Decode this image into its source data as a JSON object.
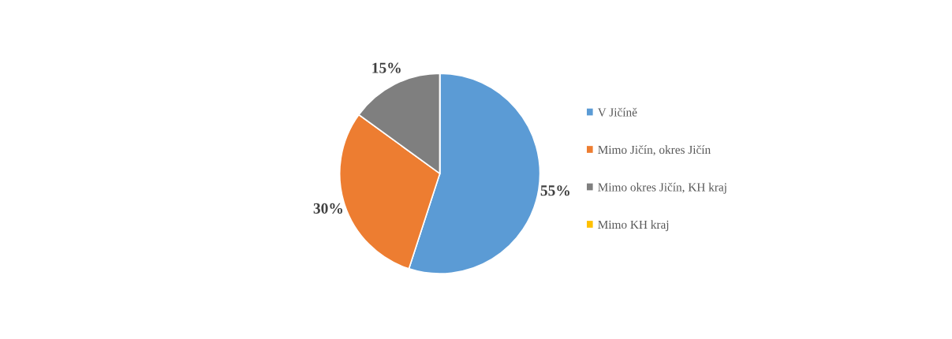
{
  "chart_data": {
    "type": "pie",
    "categories": [
      "V Jičíně",
      "Mimo Jičín, okres Jičín",
      "Mimo okres Jičín, KH kraj",
      "Mimo KH kraj"
    ],
    "values": [
      55,
      30,
      15,
      0
    ],
    "colors": [
      "#5b9bd5",
      "#ed7d31",
      "#7f7f7f",
      "#ffc000"
    ],
    "value_labels": [
      "55%",
      "30%",
      "15%",
      null
    ],
    "legend": "right"
  }
}
